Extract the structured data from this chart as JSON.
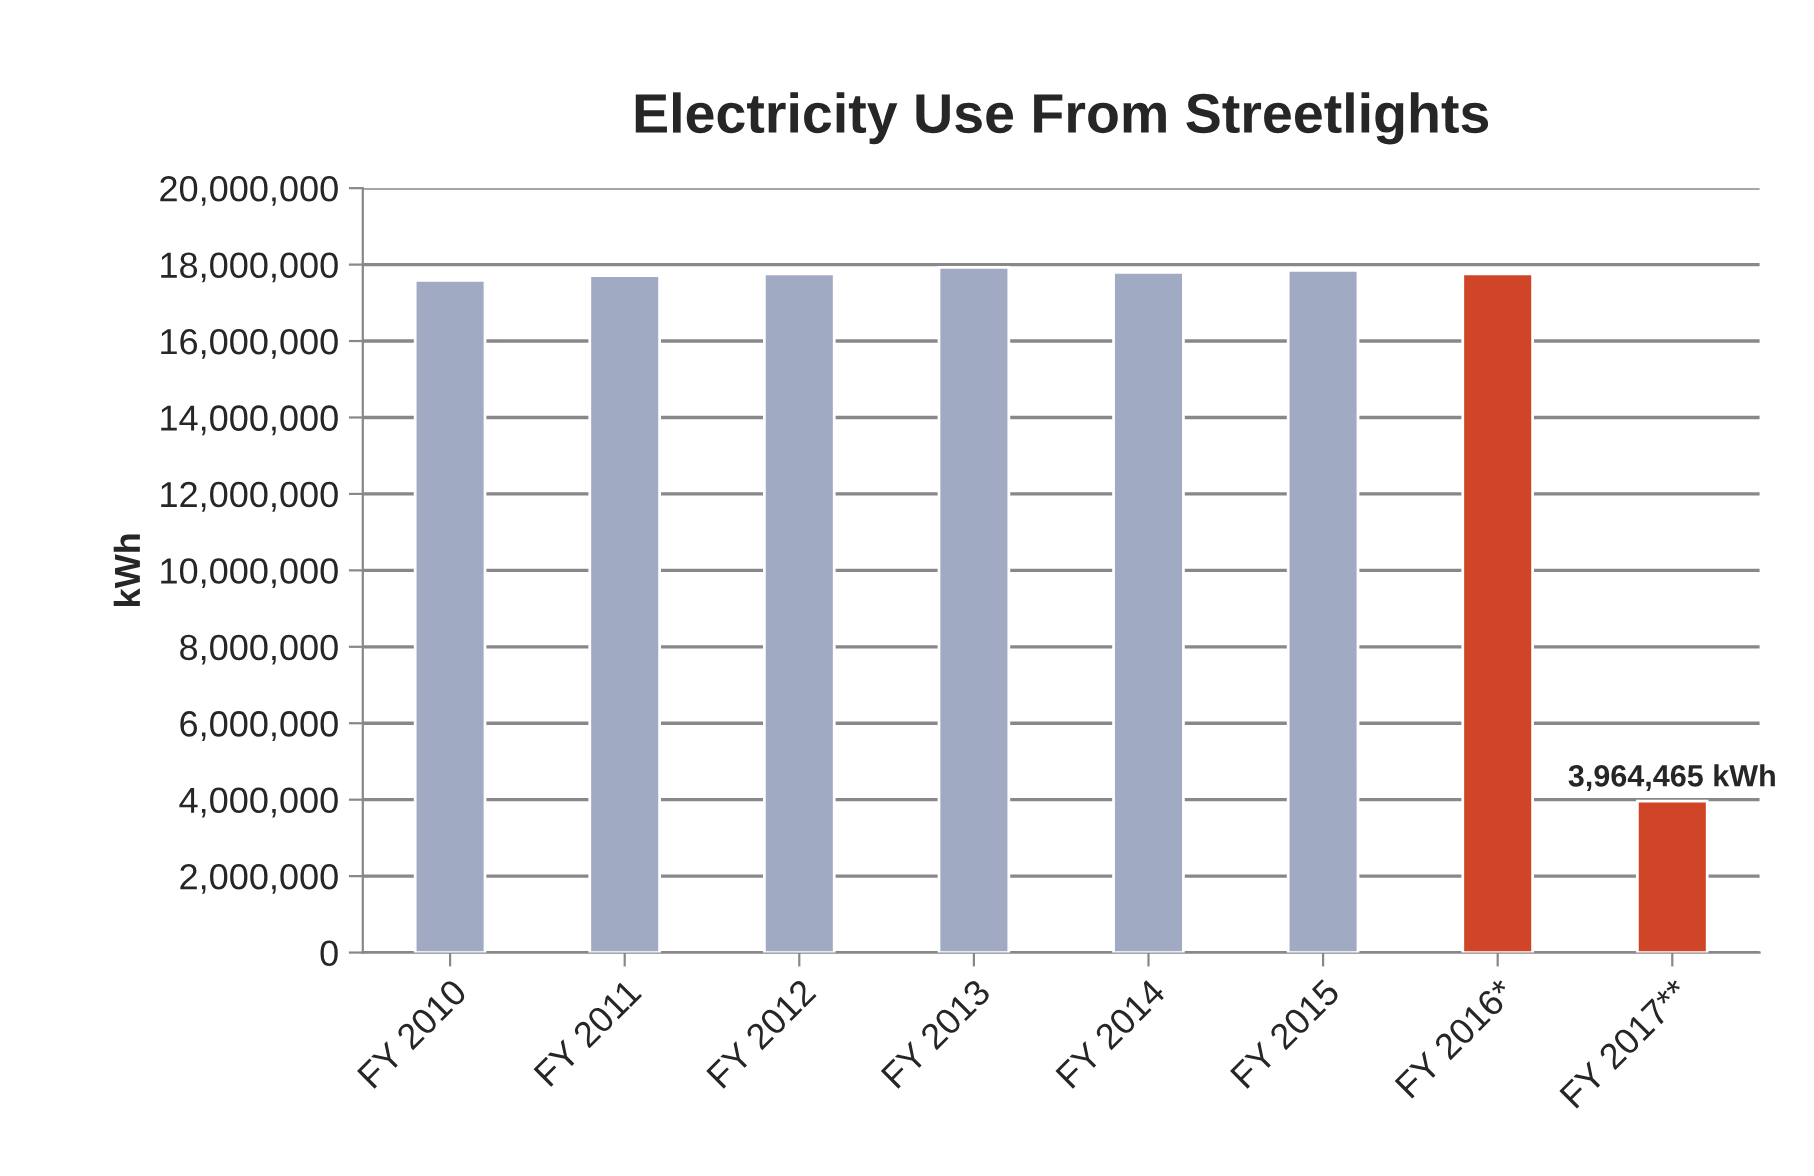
{
  "chart_data": {
    "type": "bar",
    "title": "Electricity Use From Streetlights",
    "ylabel": "kWh",
    "categories": [
      "FY 2010",
      "FY 2011",
      "FY 2012",
      "FY 2013",
      "FY 2014",
      "FY 2015",
      "FY 2016*",
      "FY 2017**"
    ],
    "values": [
      17590000,
      17710000,
      17760000,
      17930000,
      17800000,
      17850000,
      17760000,
      3964465
    ],
    "colors": [
      "#a0aac3",
      "#a0aac3",
      "#a0aac3",
      "#a0aac3",
      "#a0aac3",
      "#a0aac3",
      "#d04528",
      "#d04528"
    ],
    "value_labels": [
      null,
      null,
      null,
      null,
      null,
      null,
      null,
      "3,964,465 kWh"
    ],
    "ylim": [
      0,
      20000000
    ],
    "yticks": [
      {
        "value": 0,
        "label": "0"
      },
      {
        "value": 2000000,
        "label": "2,000,000"
      },
      {
        "value": 4000000,
        "label": "4,000,000"
      },
      {
        "value": 6000000,
        "label": "6,000,000"
      },
      {
        "value": 8000000,
        "label": "8,000,000"
      },
      {
        "value": 10000000,
        "label": "10,000,000"
      },
      {
        "value": 12000000,
        "label": "12,000,000"
      },
      {
        "value": 14000000,
        "label": "14,000,000"
      },
      {
        "value": 16000000,
        "label": "16,000,000"
      },
      {
        "value": 18000000,
        "label": "18,000,000"
      },
      {
        "value": 20000000,
        "label": "20,000,000"
      }
    ],
    "grid": "y"
  }
}
